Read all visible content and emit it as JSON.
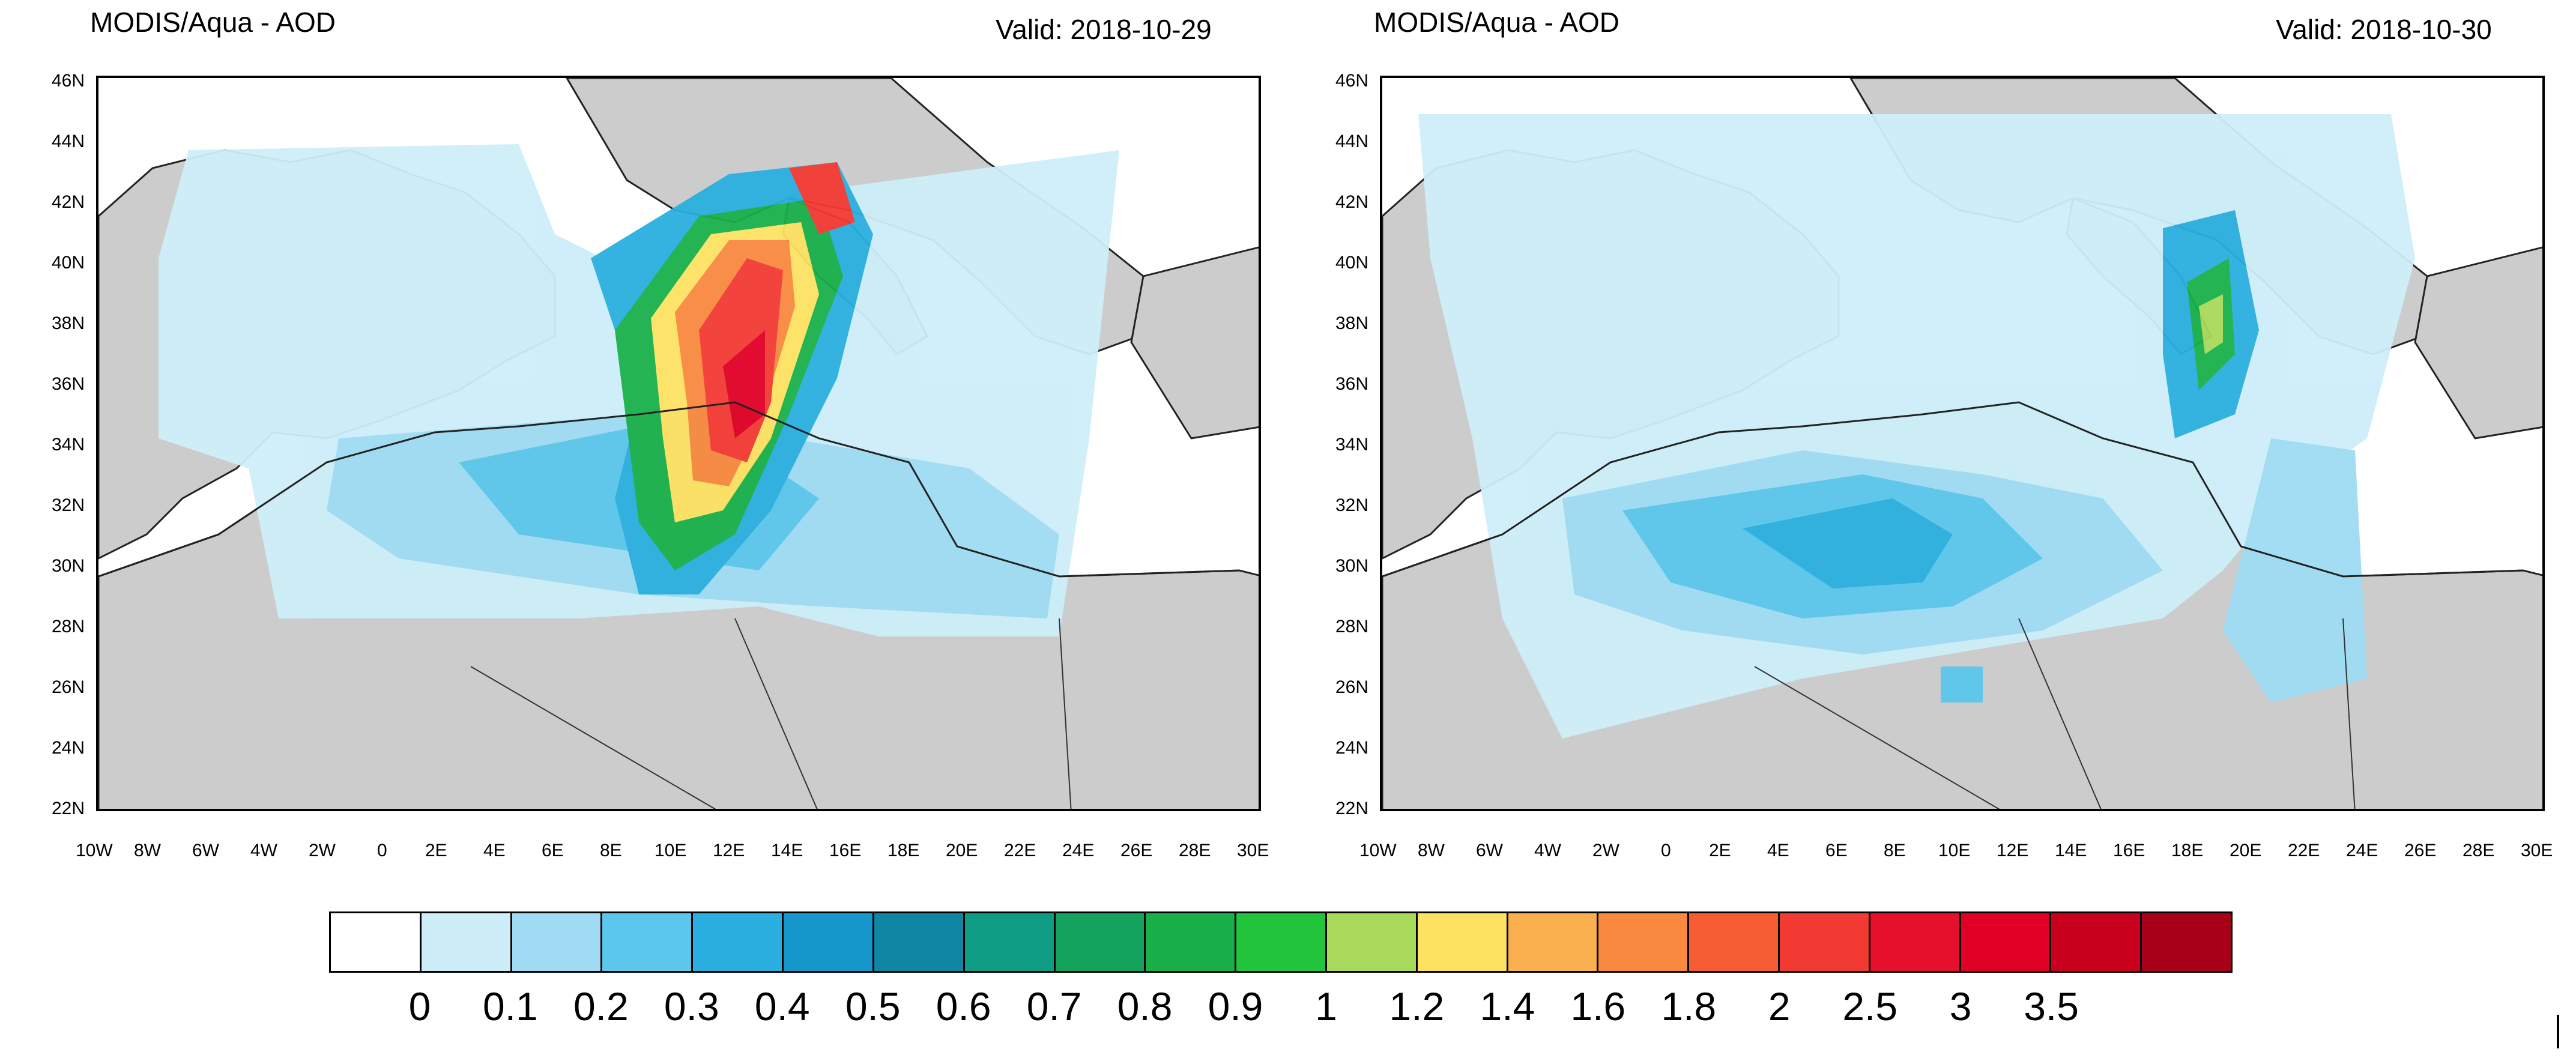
{
  "panels": [
    {
      "title": "MODIS/Aqua - AOD",
      "valid": "Valid: 2018-10-29"
    },
    {
      "title": "MODIS/Aqua - AOD",
      "valid": "Valid: 2018-10-30"
    }
  ],
  "lat_labels": [
    "46N",
    "44N",
    "42N",
    "40N",
    "38N",
    "36N",
    "34N",
    "32N",
    "30N",
    "28N",
    "26N",
    "24N",
    "22N"
  ],
  "lon_labels": [
    "10W",
    "8W",
    "6W",
    "4W",
    "2W",
    "0",
    "2E",
    "4E",
    "6E",
    "8E",
    "10E",
    "12E",
    "14E",
    "16E",
    "18E",
    "20E",
    "22E",
    "24E",
    "26E",
    "28E",
    "30E"
  ],
  "colorbar": {
    "colors": [
      "#ffffff",
      "#cdeef9",
      "#9fdcf3",
      "#5bc7ec",
      "#2aafe0",
      "#1798cc",
      "#0e86a4",
      "#0f9c84",
      "#13a35c",
      "#19b04a",
      "#22c43c",
      "#a8d95a",
      "#fde261",
      "#fab04e",
      "#f8893e",
      "#f65c34",
      "#f23a33",
      "#e7102c",
      "#e00025",
      "#c8001e",
      "#a80019"
    ],
    "labels": [
      "0",
      "0.1",
      "0.2",
      "0.3",
      "0.4",
      "0.5",
      "0.6",
      "0.7",
      "0.8",
      "0.9",
      "1",
      "1.2",
      "1.4",
      "1.6",
      "1.8",
      "2",
      "2.5",
      "3",
      "3.5"
    ]
  }
}
